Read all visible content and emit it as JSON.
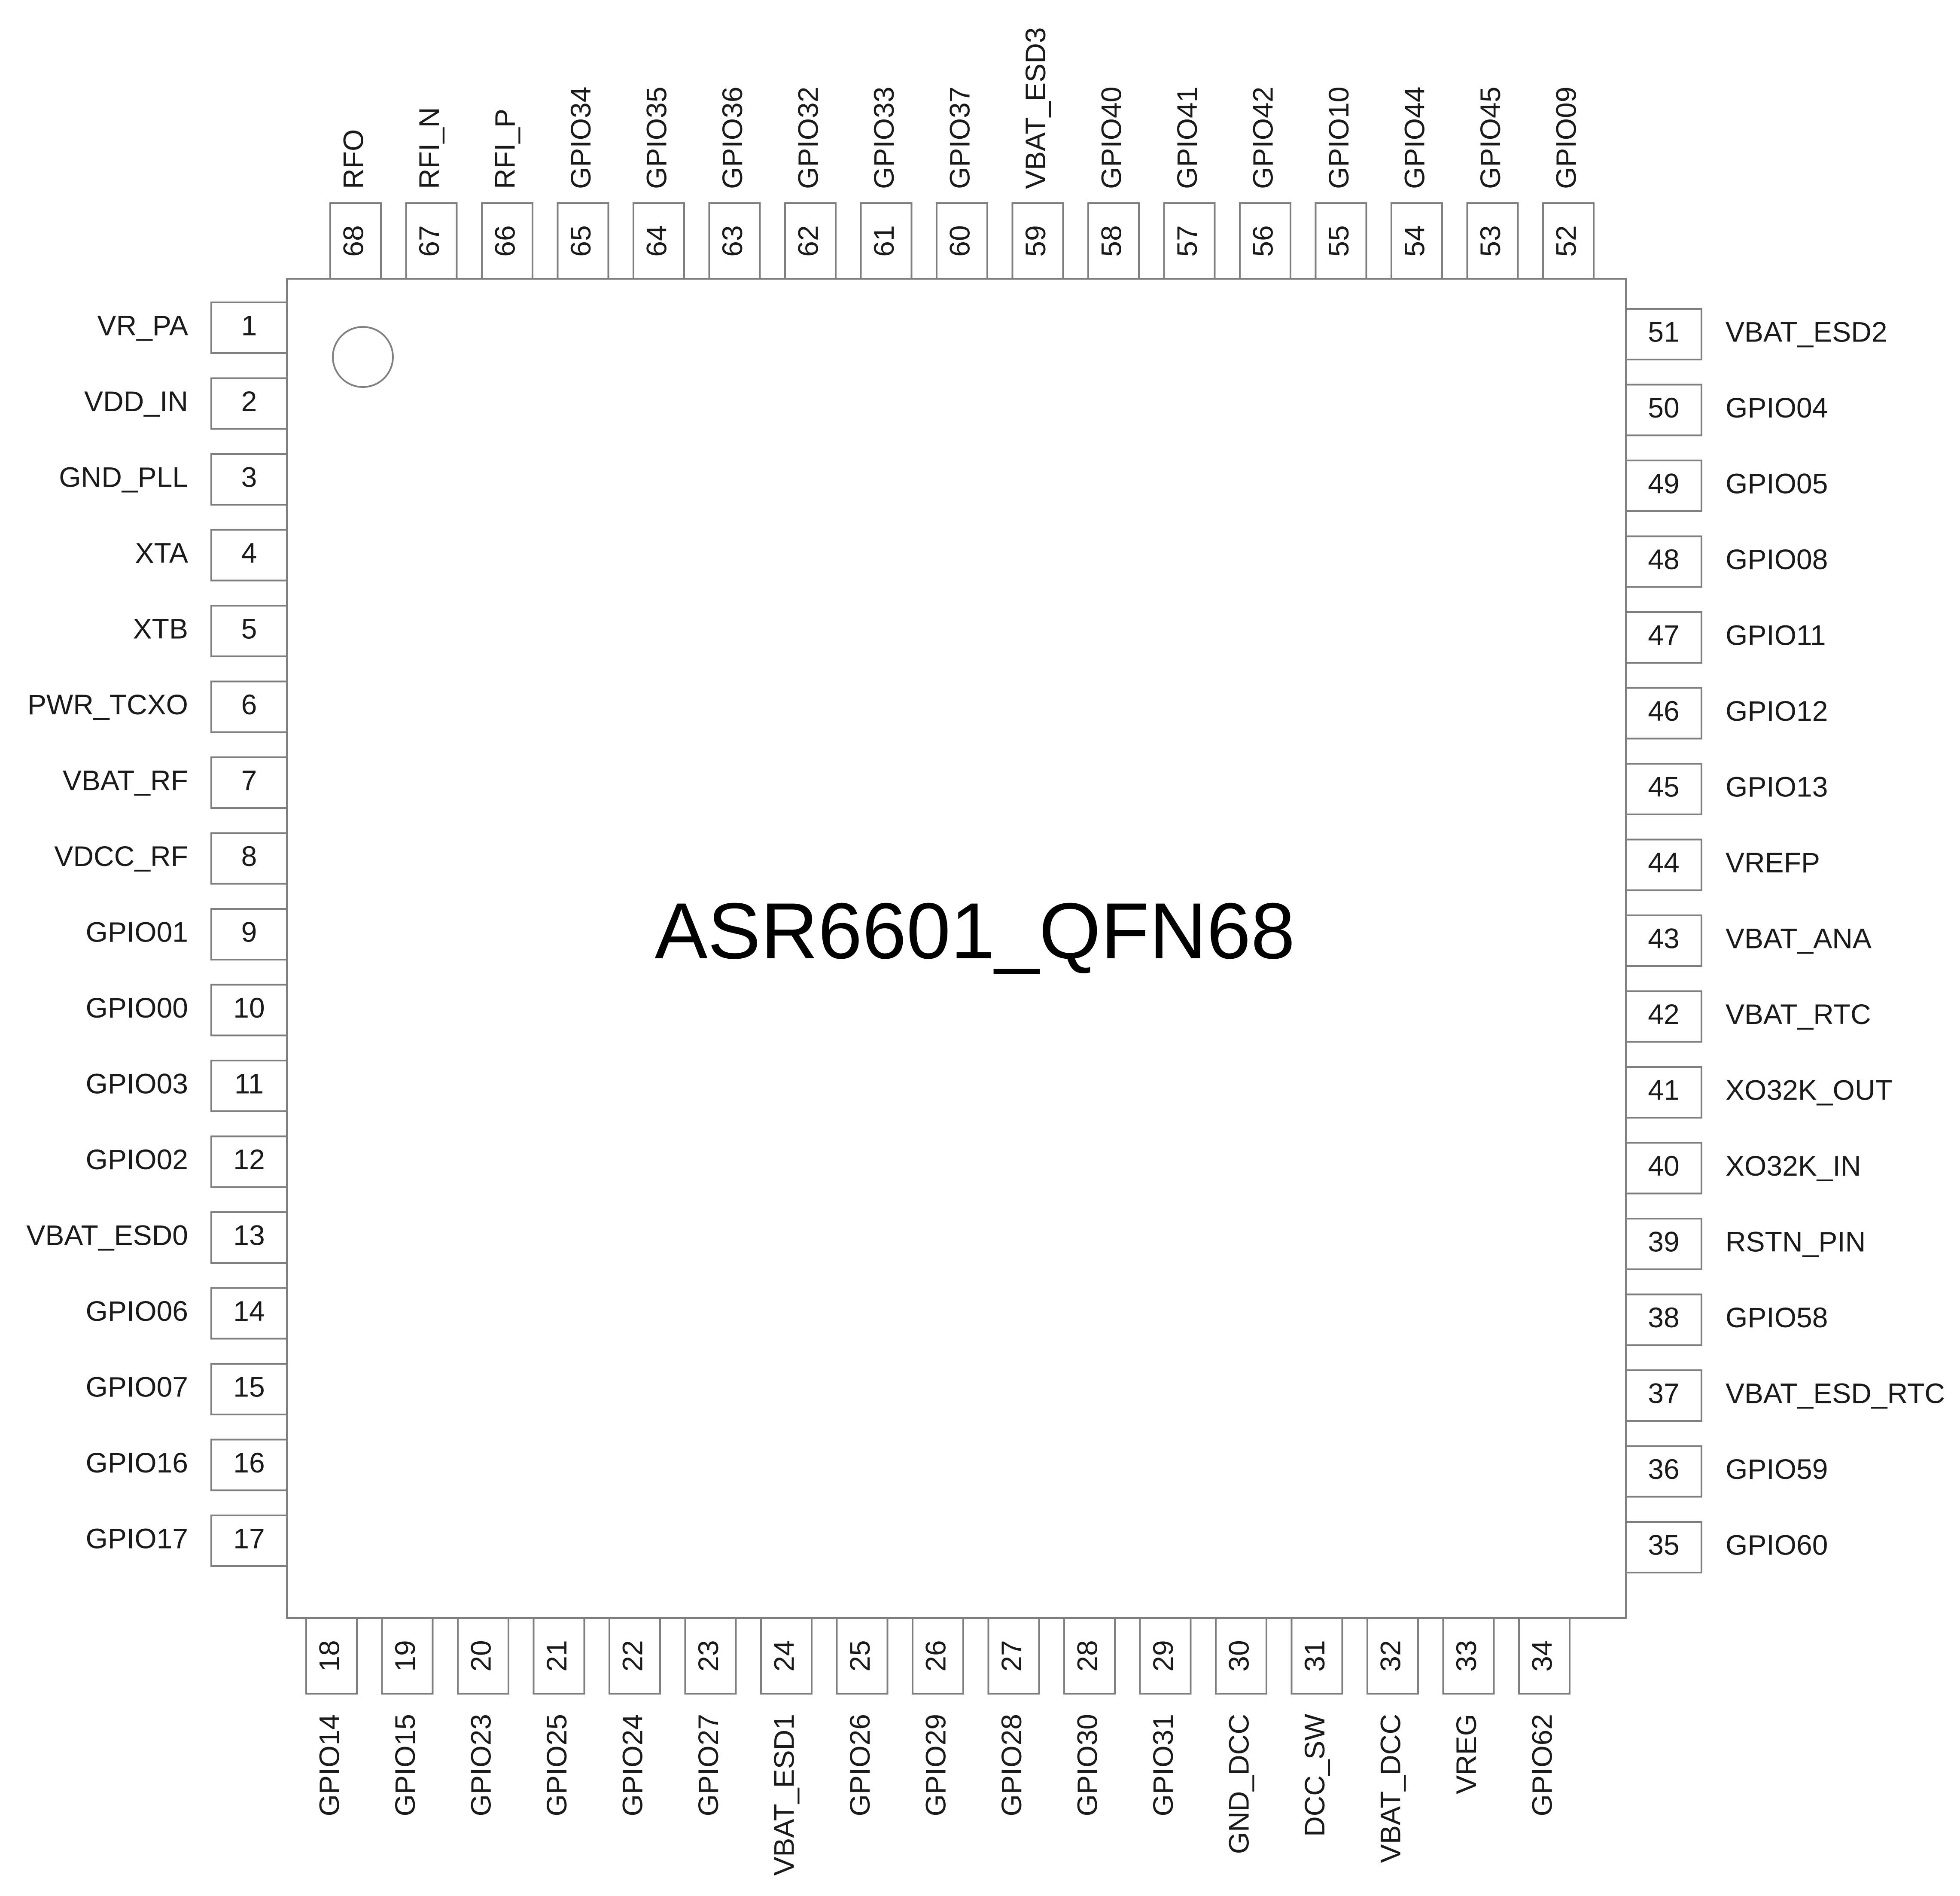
{
  "chip": {
    "name": "ASR6601_QFN68"
  },
  "pins": {
    "left": [
      {
        "num": "1",
        "name": "VR_PA"
      },
      {
        "num": "2",
        "name": "VDD_IN"
      },
      {
        "num": "3",
        "name": "GND_PLL"
      },
      {
        "num": "4",
        "name": "XTA"
      },
      {
        "num": "5",
        "name": "XTB"
      },
      {
        "num": "6",
        "name": "PWR_TCXO"
      },
      {
        "num": "7",
        "name": "VBAT_RF"
      },
      {
        "num": "8",
        "name": "VDCC_RF"
      },
      {
        "num": "9",
        "name": "GPIO01"
      },
      {
        "num": "10",
        "name": "GPIO00"
      },
      {
        "num": "11",
        "name": "GPIO03"
      },
      {
        "num": "12",
        "name": "GPIO02"
      },
      {
        "num": "13",
        "name": "VBAT_ESD0"
      },
      {
        "num": "14",
        "name": "GPIO06"
      },
      {
        "num": "15",
        "name": "GPIO07"
      },
      {
        "num": "16",
        "name": "GPIO16"
      },
      {
        "num": "17",
        "name": "GPIO17"
      }
    ],
    "bottom": [
      {
        "num": "18",
        "name": "GPIO14"
      },
      {
        "num": "19",
        "name": "GPIO15"
      },
      {
        "num": "20",
        "name": "GPIO23"
      },
      {
        "num": "21",
        "name": "GPIO25"
      },
      {
        "num": "22",
        "name": "GPIO24"
      },
      {
        "num": "23",
        "name": "GPIO27"
      },
      {
        "num": "24",
        "name": "VBAT_ESD1"
      },
      {
        "num": "25",
        "name": "GPIO26"
      },
      {
        "num": "26",
        "name": "GPIO29"
      },
      {
        "num": "27",
        "name": "GPIO28"
      },
      {
        "num": "28",
        "name": "GPIO30"
      },
      {
        "num": "29",
        "name": "GPIO31"
      },
      {
        "num": "30",
        "name": "GND_DCC"
      },
      {
        "num": "31",
        "name": "DCC_SW"
      },
      {
        "num": "32",
        "name": "VBAT_DCC"
      },
      {
        "num": "33",
        "name": "VREG"
      },
      {
        "num": "34",
        "name": "GPIO62"
      }
    ],
    "right": [
      {
        "num": "35",
        "name": "GPIO60"
      },
      {
        "num": "36",
        "name": "GPIO59"
      },
      {
        "num": "37",
        "name": "VBAT_ESD_RTC"
      },
      {
        "num": "38",
        "name": "GPIO58"
      },
      {
        "num": "39",
        "name": "RSTN_PIN"
      },
      {
        "num": "40",
        "name": "XO32K_IN"
      },
      {
        "num": "41",
        "name": "XO32K_OUT"
      },
      {
        "num": "42",
        "name": "VBAT_RTC"
      },
      {
        "num": "43",
        "name": "VBAT_ANA"
      },
      {
        "num": "44",
        "name": "VREFP"
      },
      {
        "num": "45",
        "name": "GPIO13"
      },
      {
        "num": "46",
        "name": "GPIO12"
      },
      {
        "num": "47",
        "name": "GPIO11"
      },
      {
        "num": "48",
        "name": "GPIO08"
      },
      {
        "num": "49",
        "name": "GPIO05"
      },
      {
        "num": "50",
        "name": "GPIO04"
      },
      {
        "num": "51",
        "name": "VBAT_ESD2"
      }
    ],
    "top": [
      {
        "num": "52",
        "name": "GPIO09"
      },
      {
        "num": "53",
        "name": "GPIO45"
      },
      {
        "num": "54",
        "name": "GPIO44"
      },
      {
        "num": "55",
        "name": "GPIO10"
      },
      {
        "num": "56",
        "name": "GPIO42"
      },
      {
        "num": "57",
        "name": "GPIO41"
      },
      {
        "num": "58",
        "name": "GPIO40"
      },
      {
        "num": "59",
        "name": "VBAT_ESD3"
      },
      {
        "num": "60",
        "name": "GPIO37"
      },
      {
        "num": "61",
        "name": "GPIO33"
      },
      {
        "num": "62",
        "name": "GPIO32"
      },
      {
        "num": "63",
        "name": "GPIO36"
      },
      {
        "num": "64",
        "name": "GPIO35"
      },
      {
        "num": "65",
        "name": "GPIO34"
      },
      {
        "num": "66",
        "name": "RFI_P"
      },
      {
        "num": "67",
        "name": "RFI_N"
      },
      {
        "num": "68",
        "name": "RFO"
      }
    ]
  }
}
